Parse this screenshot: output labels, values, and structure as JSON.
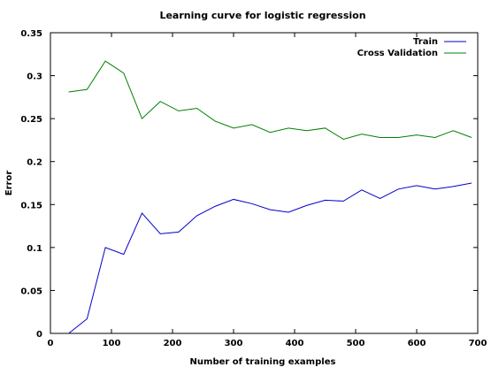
{
  "chart_data": {
    "type": "line",
    "title": "Learning curve for logistic regression",
    "xlabel": "Number of training examples",
    "ylabel": "Error",
    "xlim": [
      0,
      700
    ],
    "ylim": [
      0,
      0.35
    ],
    "xticks": [
      0,
      100,
      200,
      300,
      400,
      500,
      600,
      700
    ],
    "yticks": [
      0,
      0.05,
      0.1,
      0.15,
      0.2,
      0.25,
      0.3,
      0.35
    ],
    "xtick_labels": [
      "0",
      "100",
      "200",
      "300",
      "400",
      "500",
      "600",
      "700"
    ],
    "ytick_labels": [
      "0",
      "0.05",
      "0.1",
      "0.15",
      "0.2",
      "0.25",
      "0.3",
      "0.35"
    ],
    "grid": false,
    "legend_position": "top-right",
    "x": [
      30,
      60,
      90,
      120,
      150,
      180,
      210,
      240,
      270,
      300,
      330,
      360,
      390,
      420,
      450,
      480,
      510,
      540,
      570,
      600,
      630,
      660,
      690
    ],
    "series": [
      {
        "name": "Train",
        "color": "#0000cc",
        "values": [
          0.0,
          0.017,
          0.1,
          0.092,
          0.14,
          0.116,
          0.118,
          0.137,
          0.148,
          0.156,
          0.151,
          0.144,
          0.141,
          0.149,
          0.155,
          0.154,
          0.167,
          0.157,
          0.168,
          0.172,
          0.168,
          0.171,
          0.175
        ]
      },
      {
        "name": "Cross Validation",
        "color": "#008000",
        "values": [
          0.281,
          0.284,
          0.317,
          0.303,
          0.25,
          0.27,
          0.259,
          0.262,
          0.247,
          0.239,
          0.243,
          0.234,
          0.239,
          0.236,
          0.239,
          0.226,
          0.232,
          0.228,
          0.228,
          0.231,
          0.228,
          0.236,
          0.228
        ]
      }
    ]
  }
}
